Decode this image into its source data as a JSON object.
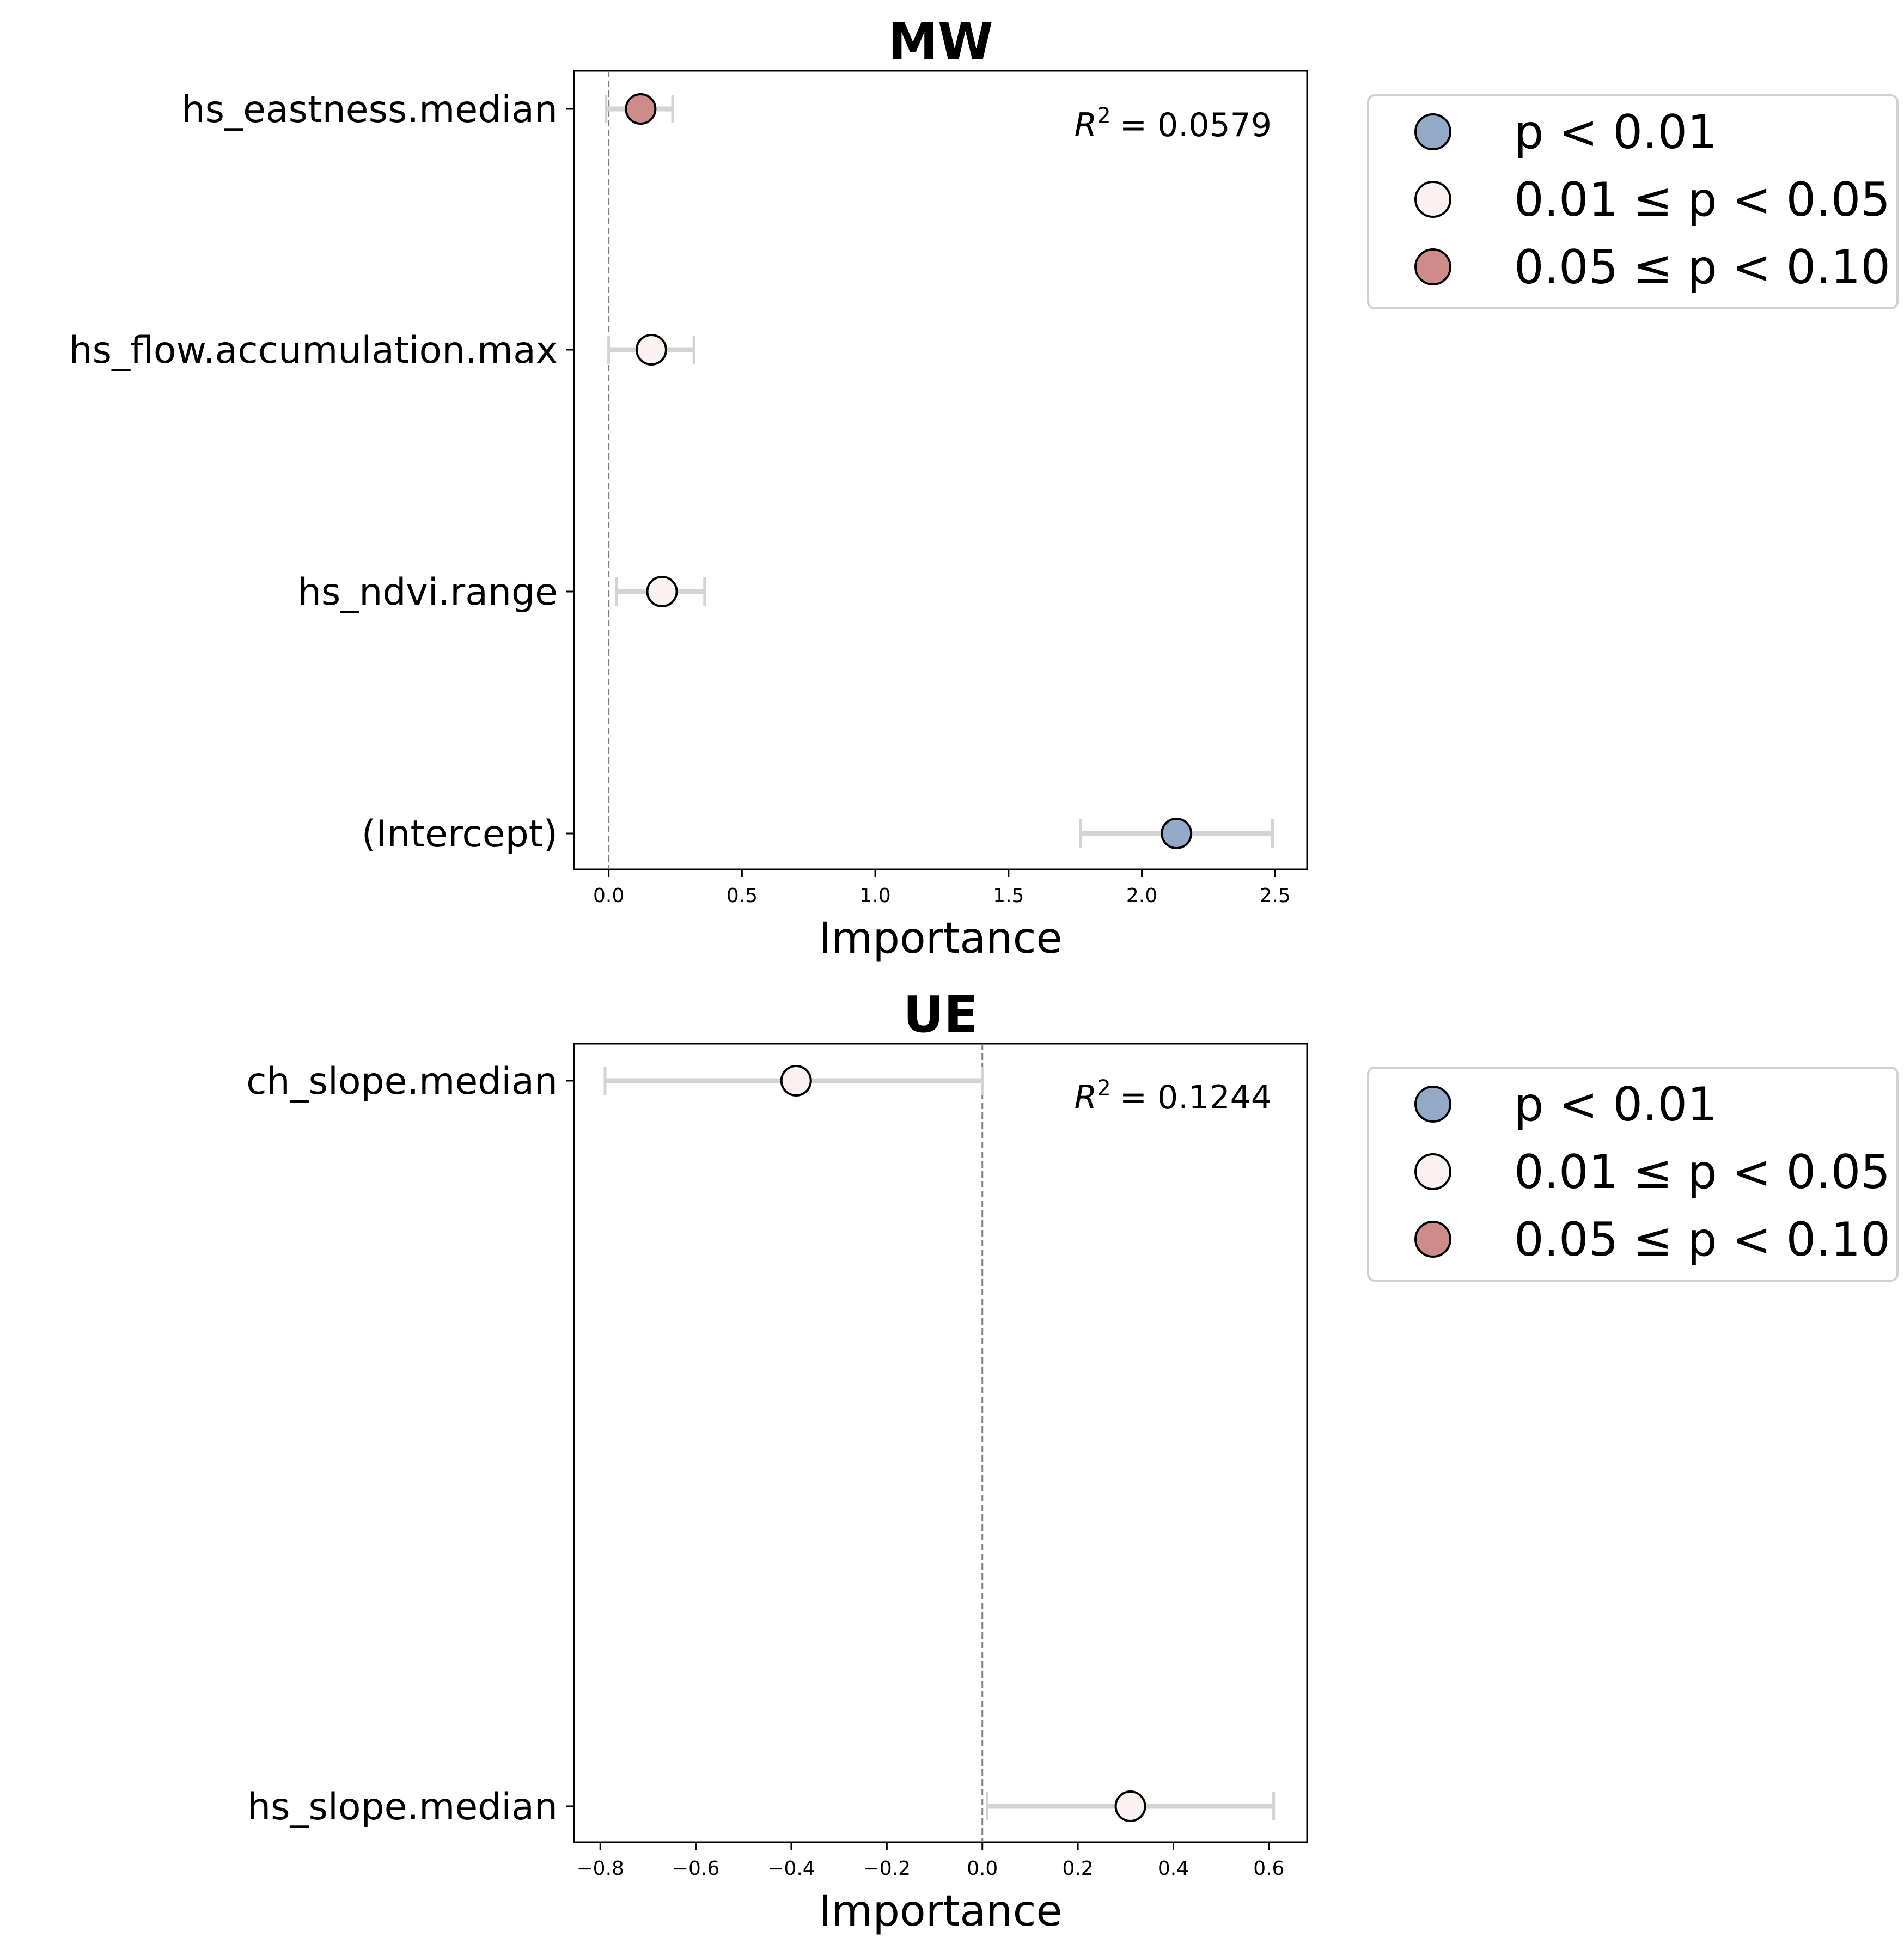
{
  "legend_items": [
    {
      "label": "p < 0.01",
      "color": "#94a8c8"
    },
    {
      "label": "0.01 ≤ p < 0.05",
      "color": "#fbf1f1"
    },
    {
      "label": "0.05 ≤ p < 0.10",
      "color": "#cd8b8a"
    }
  ],
  "r2_label": "R",
  "r2_sup": "2",
  "chart_data": [
    {
      "type": "scatter",
      "title": "MW",
      "xlabel": "Importance",
      "ylabel": "",
      "r2_value": "= 0.0579",
      "xlim": [
        -0.13,
        2.62
      ],
      "xticks": [
        0.0,
        0.5,
        1.0,
        1.5,
        2.0,
        2.5
      ],
      "xtick_labels": [
        "0.0",
        "0.5",
        "1.0",
        "1.5",
        "2.0",
        "2.5"
      ],
      "reference_line_x": 0,
      "grid": false,
      "legend_position": "outside-right",
      "categories": [
        "hs_eastness.median",
        "hs_flow.accumulation.max",
        "hs_ndvi.range",
        "(Intercept)"
      ],
      "points": [
        {
          "label": "hs_eastness.median",
          "value": 0.12,
          "ci": [
            -0.01,
            0.24
          ],
          "significance": "0.05 ≤ p < 0.10"
        },
        {
          "label": "hs_flow.accumulation.max",
          "value": 0.16,
          "ci": [
            0.0,
            0.32
          ],
          "significance": "0.01 ≤ p < 0.05"
        },
        {
          "label": "hs_ndvi.range",
          "value": 0.2,
          "ci": [
            0.03,
            0.36
          ],
          "significance": "0.01 ≤ p < 0.05"
        },
        {
          "label": "(Intercept)",
          "value": 2.13,
          "ci": [
            1.77,
            2.49
          ],
          "significance": "p < 0.01"
        }
      ]
    },
    {
      "type": "scatter",
      "title": "UE",
      "xlabel": "Importance",
      "ylabel": "",
      "r2_value": "= 0.1244",
      "xlim": [
        -0.855,
        0.68
      ],
      "xticks": [
        -0.8,
        -0.6,
        -0.4,
        -0.2,
        0.0,
        0.2,
        0.4,
        0.6
      ],
      "xtick_labels": [
        "−0.8",
        "−0.6",
        "−0.4",
        "−0.2",
        "0.0",
        "0.2",
        "0.4",
        "0.6"
      ],
      "reference_line_x": 0,
      "grid": false,
      "legend_position": "outside-right",
      "categories": [
        "ch_slope.median",
        "hs_slope.median"
      ],
      "points": [
        {
          "label": "ch_slope.median",
          "value": -0.39,
          "ci": [
            -0.79,
            0.0
          ],
          "significance": "0.01 ≤ p < 0.05"
        },
        {
          "label": "hs_slope.median",
          "value": 0.31,
          "ci": [
            0.01,
            0.61
          ],
          "significance": "0.01 ≤ p < 0.05"
        }
      ]
    }
  ]
}
